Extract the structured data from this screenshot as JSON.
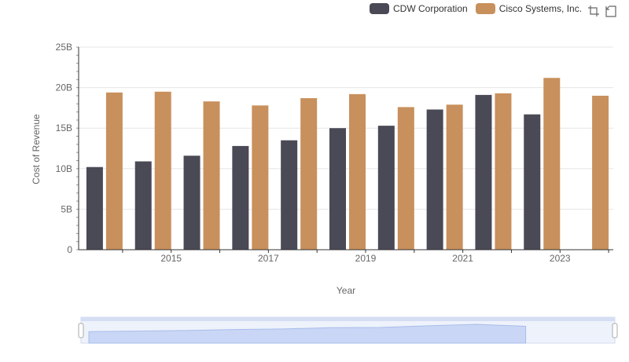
{
  "chart_data": {
    "type": "bar",
    "title": "",
    "xlabel": "Year",
    "ylabel": "Cost of Revenue",
    "ylim": [
      0,
      25000000000
    ],
    "y_ticks": [
      "0",
      "5B",
      "10B",
      "15B",
      "20B",
      "25B"
    ],
    "x": [
      2014,
      2015,
      2016,
      2017,
      2018,
      2019,
      2020,
      2021,
      2022,
      2023,
      2024
    ],
    "x_tick_labels": [
      "2015",
      "2017",
      "2019",
      "2021",
      "2023"
    ],
    "series": [
      {
        "name": "CDW Corporation",
        "color": "#4a4956",
        "values": [
          10200000000,
          10900000000,
          11600000000,
          12800000000,
          13500000000,
          15000000000,
          15300000000,
          17300000000,
          19100000000,
          16700000000,
          null
        ]
      },
      {
        "name": "Cisco Systems, Inc.",
        "color": "#c8905c",
        "values": [
          19400000000,
          19500000000,
          18300000000,
          17800000000,
          18700000000,
          19200000000,
          17600000000,
          17900000000,
          19300000000,
          21200000000,
          19000000000
        ]
      }
    ],
    "legend_position": "top-right",
    "grid": true,
    "data_zoom": true
  },
  "toolbox": {
    "zoom_icon": "zoom-icon",
    "restore_icon": "restore-icon"
  }
}
